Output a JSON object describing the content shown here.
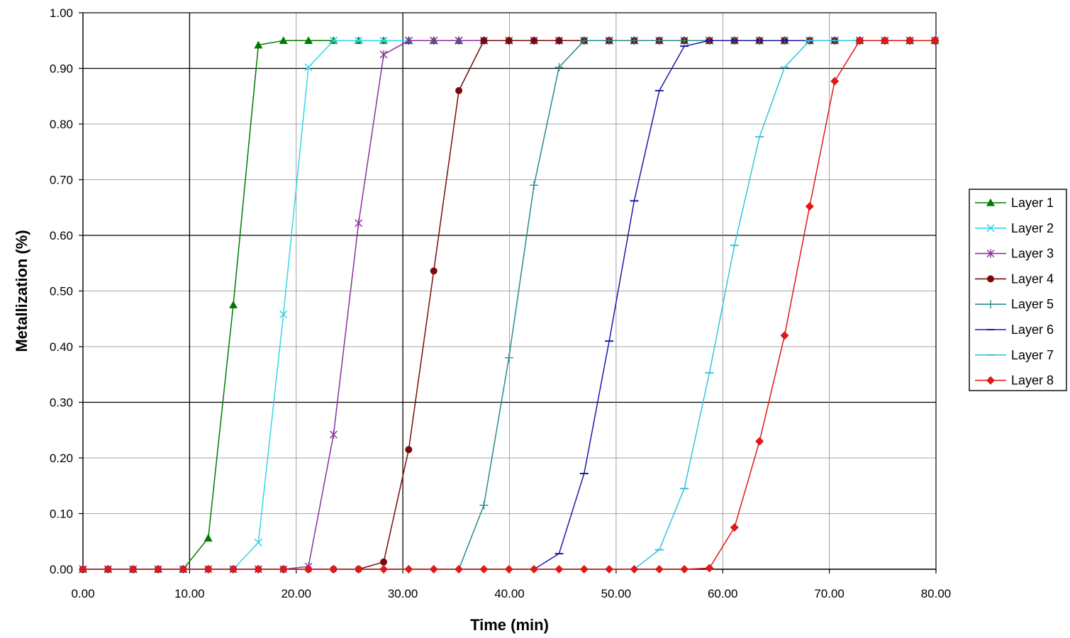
{
  "chart_data": {
    "type": "line",
    "title": "",
    "xlabel": "Time (min)",
    "ylabel": "Metallization (%)",
    "xlim": [
      0,
      80
    ],
    "ylim": [
      0,
      1
    ],
    "x_ticks": [
      "0.00",
      "10.00",
      "20.00",
      "30.00",
      "40.00",
      "50.00",
      "60.00",
      "70.00",
      "80.00"
    ],
    "y_ticks": [
      "0.00",
      "0.10",
      "0.20",
      "0.30",
      "0.40",
      "0.50",
      "0.60",
      "0.70",
      "0.80",
      "0.90",
      "1.00"
    ],
    "grid": true,
    "legend_position": "right",
    "x": [
      0,
      2.35,
      4.7,
      7.05,
      9.4,
      11.75,
      14.1,
      16.45,
      18.8,
      21.15,
      23.5,
      25.85,
      28.2,
      30.55,
      32.9,
      35.25,
      37.6,
      39.95,
      42.3,
      44.65,
      47.0,
      49.35,
      51.7,
      54.05,
      56.4,
      58.75,
      61.1,
      63.45,
      65.8,
      68.15,
      70.5,
      72.85,
      75.2,
      77.55,
      79.9
    ],
    "series": [
      {
        "name": "Layer 1",
        "color": "#007a00",
        "marker": "triangle",
        "values": [
          0,
          0,
          0,
          0,
          0,
          0.056,
          0.475,
          0.942,
          0.95,
          0.95,
          0.95,
          0.95,
          0.95,
          0.95,
          0.95,
          0.95,
          0.95,
          0.95,
          0.95,
          0.95,
          0.95,
          0.95,
          0.95,
          0.95,
          0.95,
          0.95,
          0.95,
          0.95,
          0.95,
          0.95,
          0.95,
          0.95,
          0.95,
          0.95,
          0.95
        ]
      },
      {
        "name": "Layer 2",
        "color": "#33d6e8",
        "marker": "x",
        "values": [
          0,
          0,
          0,
          0,
          0,
          0,
          0,
          0.048,
          0.458,
          0.902,
          0.95,
          0.95,
          0.95,
          0.95,
          0.95,
          0.95,
          0.95,
          0.95,
          0.95,
          0.95,
          0.95,
          0.95,
          0.95,
          0.95,
          0.95,
          0.95,
          0.95,
          0.95,
          0.95,
          0.95,
          0.95,
          0.95,
          0.95,
          0.95,
          0.95
        ]
      },
      {
        "name": "Layer 3",
        "color": "#8a2fa0",
        "marker": "star",
        "values": [
          0,
          0,
          0,
          0,
          0,
          0,
          0,
          0,
          0,
          0.005,
          0.242,
          0.622,
          0.925,
          0.95,
          0.95,
          0.95,
          0.95,
          0.95,
          0.95,
          0.95,
          0.95,
          0.95,
          0.95,
          0.95,
          0.95,
          0.95,
          0.95,
          0.95,
          0.95,
          0.95,
          0.95,
          0.95,
          0.95,
          0.95,
          0.95
        ]
      },
      {
        "name": "Layer 4",
        "color": "#7a0a0a",
        "marker": "circle",
        "values": [
          0,
          0,
          0,
          0,
          0,
          0,
          0,
          0,
          0,
          0,
          0,
          0,
          0.013,
          0.215,
          0.536,
          0.86,
          0.95,
          0.95,
          0.95,
          0.95,
          0.95,
          0.95,
          0.95,
          0.95,
          0.95,
          0.95,
          0.95,
          0.95,
          0.95,
          0.95,
          0.95,
          0.95,
          0.95,
          0.95,
          0.95
        ]
      },
      {
        "name": "Layer 5",
        "color": "#2a8a8a",
        "marker": "plus",
        "values": [
          0,
          0,
          0,
          0,
          0,
          0,
          0,
          0,
          0,
          0,
          0,
          0,
          0,
          0,
          0,
          0,
          0.115,
          0.38,
          0.69,
          0.902,
          0.95,
          0.95,
          0.95,
          0.95,
          0.95,
          0.95,
          0.95,
          0.95,
          0.95,
          0.95,
          0.95,
          0.95,
          0.95,
          0.95,
          0.95
        ]
      },
      {
        "name": "Layer 6",
        "color": "#1a1aa8",
        "marker": "dash",
        "values": [
          0,
          0,
          0,
          0,
          0,
          0,
          0,
          0,
          0,
          0,
          0,
          0,
          0,
          0,
          0,
          0,
          0,
          0,
          0,
          0.028,
          0.172,
          0.41,
          0.662,
          0.86,
          0.94,
          0.95,
          0.95,
          0.95,
          0.95,
          0.95,
          0.95,
          0.95,
          0.95,
          0.95,
          0.95
        ]
      },
      {
        "name": "Layer 7",
        "color": "#33c4e0",
        "marker": "dash",
        "values": [
          0,
          0,
          0,
          0,
          0,
          0,
          0,
          0,
          0,
          0,
          0,
          0,
          0,
          0,
          0,
          0,
          0,
          0,
          0,
          0,
          0,
          0,
          0,
          0.035,
          0.145,
          0.353,
          0.582,
          0.777,
          0.902,
          0.95,
          0.95,
          0.95,
          0.95,
          0.95,
          0.95
        ]
      },
      {
        "name": "Layer 8",
        "color": "#e01818",
        "marker": "diamond",
        "values": [
          0,
          0,
          0,
          0,
          0,
          0,
          0,
          0,
          0,
          0,
          0,
          0,
          0,
          0,
          0,
          0,
          0,
          0,
          0,
          0,
          0,
          0,
          0,
          0,
          0,
          0.002,
          0.075,
          0.23,
          0.42,
          0.652,
          0.877,
          0.95,
          0.95,
          0.95,
          0.95
        ]
      }
    ]
  }
}
